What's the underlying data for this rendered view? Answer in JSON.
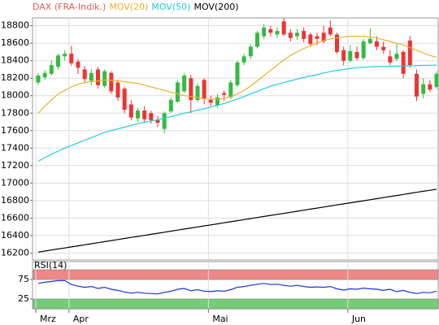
{
  "chart_data": [
    {
      "type": "candlestick",
      "categories": [
        "Mrz",
        null,
        null,
        null,
        null,
        "Apr",
        null,
        null,
        null,
        null,
        null,
        null,
        null,
        null,
        null,
        null,
        null,
        null,
        null,
        null,
        null,
        null,
        null,
        null,
        null,
        null,
        "Mai",
        null,
        null,
        null,
        null,
        null,
        null,
        null,
        null,
        null,
        null,
        null,
        null,
        null,
        null,
        null,
        null,
        null,
        null,
        null,
        null,
        "Jun",
        null,
        null,
        null,
        null,
        null,
        null,
        null,
        null,
        null,
        null,
        null,
        null,
        null
      ],
      "ohlc": {
        "name": "DAX (FRA-Indik.)",
        "color": "#e06060",
        "up_color": "#33bb44",
        "down_color": "#ee3333",
        "open": [
          18150,
          18210,
          18250,
          18330,
          18450,
          18480,
          18390,
          18300,
          18170,
          18300,
          18110,
          18260,
          18150,
          18080,
          17900,
          17740,
          17830,
          17800,
          17720,
          17620,
          17820,
          17930,
          18050,
          18200,
          17950,
          18180,
          17950,
          17890,
          18030,
          17980,
          18120,
          18380,
          18450,
          18560,
          18680,
          18760,
          18700,
          18850,
          18720,
          18680,
          18740,
          18700,
          18680,
          18720,
          18780,
          18700,
          18520,
          18400,
          18500,
          18430,
          18600,
          18620,
          18560,
          18450,
          18420,
          18500,
          18630,
          18250,
          18020,
          18130,
          18100
        ],
        "high": [
          18260,
          18290,
          18400,
          18480,
          18520,
          18570,
          18420,
          18340,
          18300,
          18330,
          18300,
          18280,
          18180,
          18100,
          17950,
          17860,
          17880,
          17830,
          17770,
          17820,
          17980,
          18180,
          18260,
          18240,
          18140,
          18200,
          18000,
          18020,
          18060,
          18180,
          18400,
          18480,
          18590,
          18740,
          18820,
          18800,
          18780,
          18890,
          18760,
          18760,
          18780,
          18720,
          18720,
          18800,
          18860,
          18720,
          18560,
          18580,
          18560,
          18650,
          18770,
          18680,
          18620,
          18520,
          18600,
          18520,
          18680,
          18300,
          18200,
          18180,
          18280
        ],
        "low": [
          18120,
          18180,
          18230,
          18300,
          18400,
          18340,
          18250,
          18150,
          18120,
          18080,
          18090,
          18020,
          17940,
          17800,
          17720,
          17700,
          17700,
          17680,
          17640,
          17570,
          17800,
          17920,
          18030,
          17800,
          17930,
          17900,
          17880,
          17860,
          17940,
          17960,
          18100,
          18350,
          18420,
          18540,
          18650,
          18680,
          18660,
          18680,
          18620,
          18640,
          18610,
          18560,
          18580,
          18600,
          18680,
          18480,
          18350,
          18380,
          18400,
          18410,
          18590,
          18520,
          18480,
          18350,
          18400,
          18200,
          18320,
          17940,
          17970,
          18040,
          18080
        ],
        "close": [
          18230,
          18260,
          18350,
          18460,
          18480,
          18370,
          18320,
          18190,
          18260,
          18120,
          18280,
          18050,
          17980,
          17840,
          17750,
          17830,
          17730,
          17720,
          17690,
          17800,
          17950,
          18150,
          18230,
          17950,
          18110,
          17960,
          17920,
          17980,
          18010,
          18150,
          18380,
          18450,
          18560,
          18720,
          18780,
          18720,
          18740,
          18700,
          18660,
          18720,
          18650,
          18590,
          18650,
          18620,
          18700,
          18500,
          18400,
          18510,
          18430,
          18620,
          18650,
          18560,
          18520,
          18380,
          18480,
          18250,
          18350,
          17990,
          18130,
          18070,
          18250
        ]
      },
      "series": [
        {
          "name": "MOV(20)",
          "color": "#f0b030",
          "values": [
            17800,
            17880,
            17950,
            18020,
            18060,
            18100,
            18130,
            18150,
            18160,
            18170,
            18180,
            18175,
            18170,
            18160,
            18150,
            18140,
            18120,
            18100,
            18080,
            18060,
            18040,
            18020,
            18000,
            17990,
            17975,
            17965,
            17960,
            17960,
            17970,
            17990,
            18020,
            18060,
            18110,
            18170,
            18230,
            18290,
            18350,
            18410,
            18460,
            18500,
            18540,
            18570,
            18600,
            18630,
            18650,
            18660,
            18670,
            18680,
            18680,
            18680,
            18670,
            18660,
            18640,
            18620,
            18600,
            18580,
            18550,
            18520,
            18490,
            18460,
            18440
          ]
        },
        {
          "name": "MOV(50)",
          "color": "#22ccdd",
          "values": [
            17250,
            17290,
            17330,
            17365,
            17400,
            17430,
            17460,
            17490,
            17520,
            17550,
            17580,
            17600,
            17620,
            17640,
            17660,
            17680,
            17695,
            17710,
            17725,
            17745,
            17760,
            17780,
            17800,
            17815,
            17835,
            17850,
            17870,
            17890,
            17910,
            17935,
            17960,
            17990,
            18020,
            18050,
            18080,
            18110,
            18130,
            18150,
            18170,
            18190,
            18210,
            18225,
            18240,
            18260,
            18275,
            18290,
            18300,
            18310,
            18320,
            18325,
            18330,
            18332,
            18334,
            18336,
            18338,
            18340,
            18342,
            18344,
            18346,
            18348,
            18350
          ]
        },
        {
          "name": "MOV(200)",
          "color": "#000000",
          "values": [
            16210,
            16222,
            16234,
            16246,
            16258,
            16270,
            16282,
            16294,
            16306,
            16318,
            16330,
            16342,
            16354,
            16366,
            16378,
            16390,
            16402,
            16414,
            16426,
            16438,
            16450,
            16462,
            16474,
            16486,
            16498,
            16510,
            16522,
            16534,
            16546,
            16558,
            16570,
            16582,
            16594,
            16606,
            16618,
            16630,
            16642,
            16654,
            16666,
            16678,
            16690,
            16702,
            16714,
            16726,
            16738,
            16750,
            16762,
            16774,
            16786,
            16798,
            16810,
            16822,
            16834,
            16846,
            16858,
            16870,
            16882,
            16894,
            16906,
            16918,
            16930
          ]
        }
      ],
      "ylim": [
        16120,
        18890
      ],
      "yticks": [
        16200,
        16400,
        16600,
        16800,
        17000,
        17200,
        17400,
        17600,
        17800,
        18000,
        18200,
        18400,
        18600,
        18800
      ],
      "grid": true
    },
    {
      "type": "line",
      "title": "RSI(14)",
      "series": [
        {
          "color": "#2233cc",
          "values": [
            65,
            68,
            70,
            72,
            72,
            62,
            58,
            55,
            57,
            52,
            55,
            50,
            47,
            43,
            40,
            42,
            40,
            39,
            38,
            42,
            45,
            50,
            52,
            46,
            49,
            45,
            44,
            46,
            45,
            49,
            55,
            57,
            60,
            63,
            65,
            62,
            63,
            60,
            58,
            60,
            57,
            55,
            56,
            55,
            57,
            51,
            48,
            51,
            50,
            53,
            51,
            50,
            47,
            50,
            44,
            47,
            42,
            39,
            42,
            41,
            45
          ]
        }
      ],
      "bands": [
        {
          "from": 75,
          "to": 100,
          "color": "#f08888"
        },
        {
          "from": 0,
          "to": 25,
          "color": "#77cc77"
        }
      ],
      "ylim": [
        0,
        100
      ],
      "yticks": [
        25,
        75
      ]
    }
  ]
}
